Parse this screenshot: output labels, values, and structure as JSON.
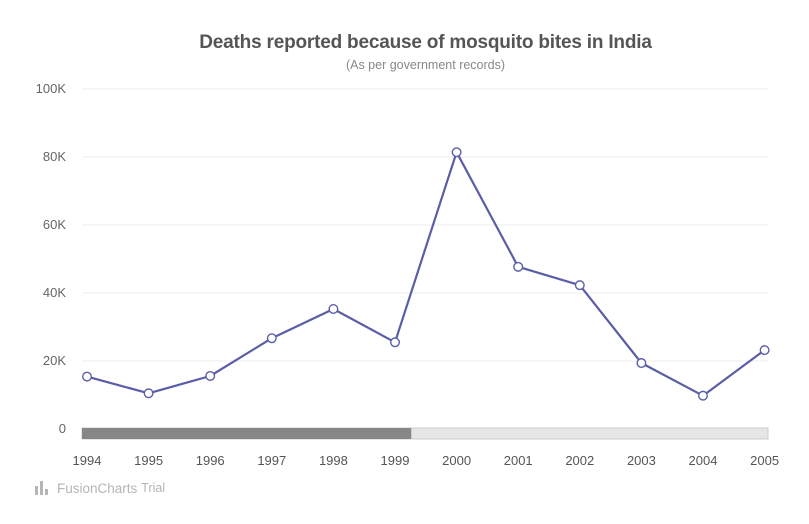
{
  "chart_data": {
    "type": "line",
    "title": "Deaths reported because of mosquito bites in India",
    "subtitle": "(As per government records)",
    "xlabel": "",
    "ylabel": "",
    "ylim": [
      0,
      100000
    ],
    "y_ticks": [
      {
        "value": 0,
        "label": "0"
      },
      {
        "value": 20000,
        "label": "20K"
      },
      {
        "value": 40000,
        "label": "40K"
      },
      {
        "value": 60000,
        "label": "60K"
      },
      {
        "value": 80000,
        "label": "80K"
      },
      {
        "value": 100000,
        "label": "100K"
      }
    ],
    "categories": [
      "1994",
      "1995",
      "1996",
      "1997",
      "1998",
      "1999",
      "2000",
      "2001",
      "2002",
      "2003",
      "2004",
      "2005"
    ],
    "values": [
      15400,
      10500,
      15600,
      26700,
      35300,
      25500,
      81400,
      47700,
      42300,
      19400,
      9800,
      23200
    ],
    "grid": true,
    "legend": "none",
    "scroll_position": 0.48,
    "colors": {
      "line": "#5b5ea6",
      "marker_fill": "#ffffff",
      "grid": "#eeeeee",
      "scroll_thumb": "#878787",
      "scroll_track": "#e6e6e6"
    }
  },
  "watermark": {
    "icon": "fusioncharts-logo-icon",
    "brand": "FusionCharts",
    "trial": "Trial"
  }
}
